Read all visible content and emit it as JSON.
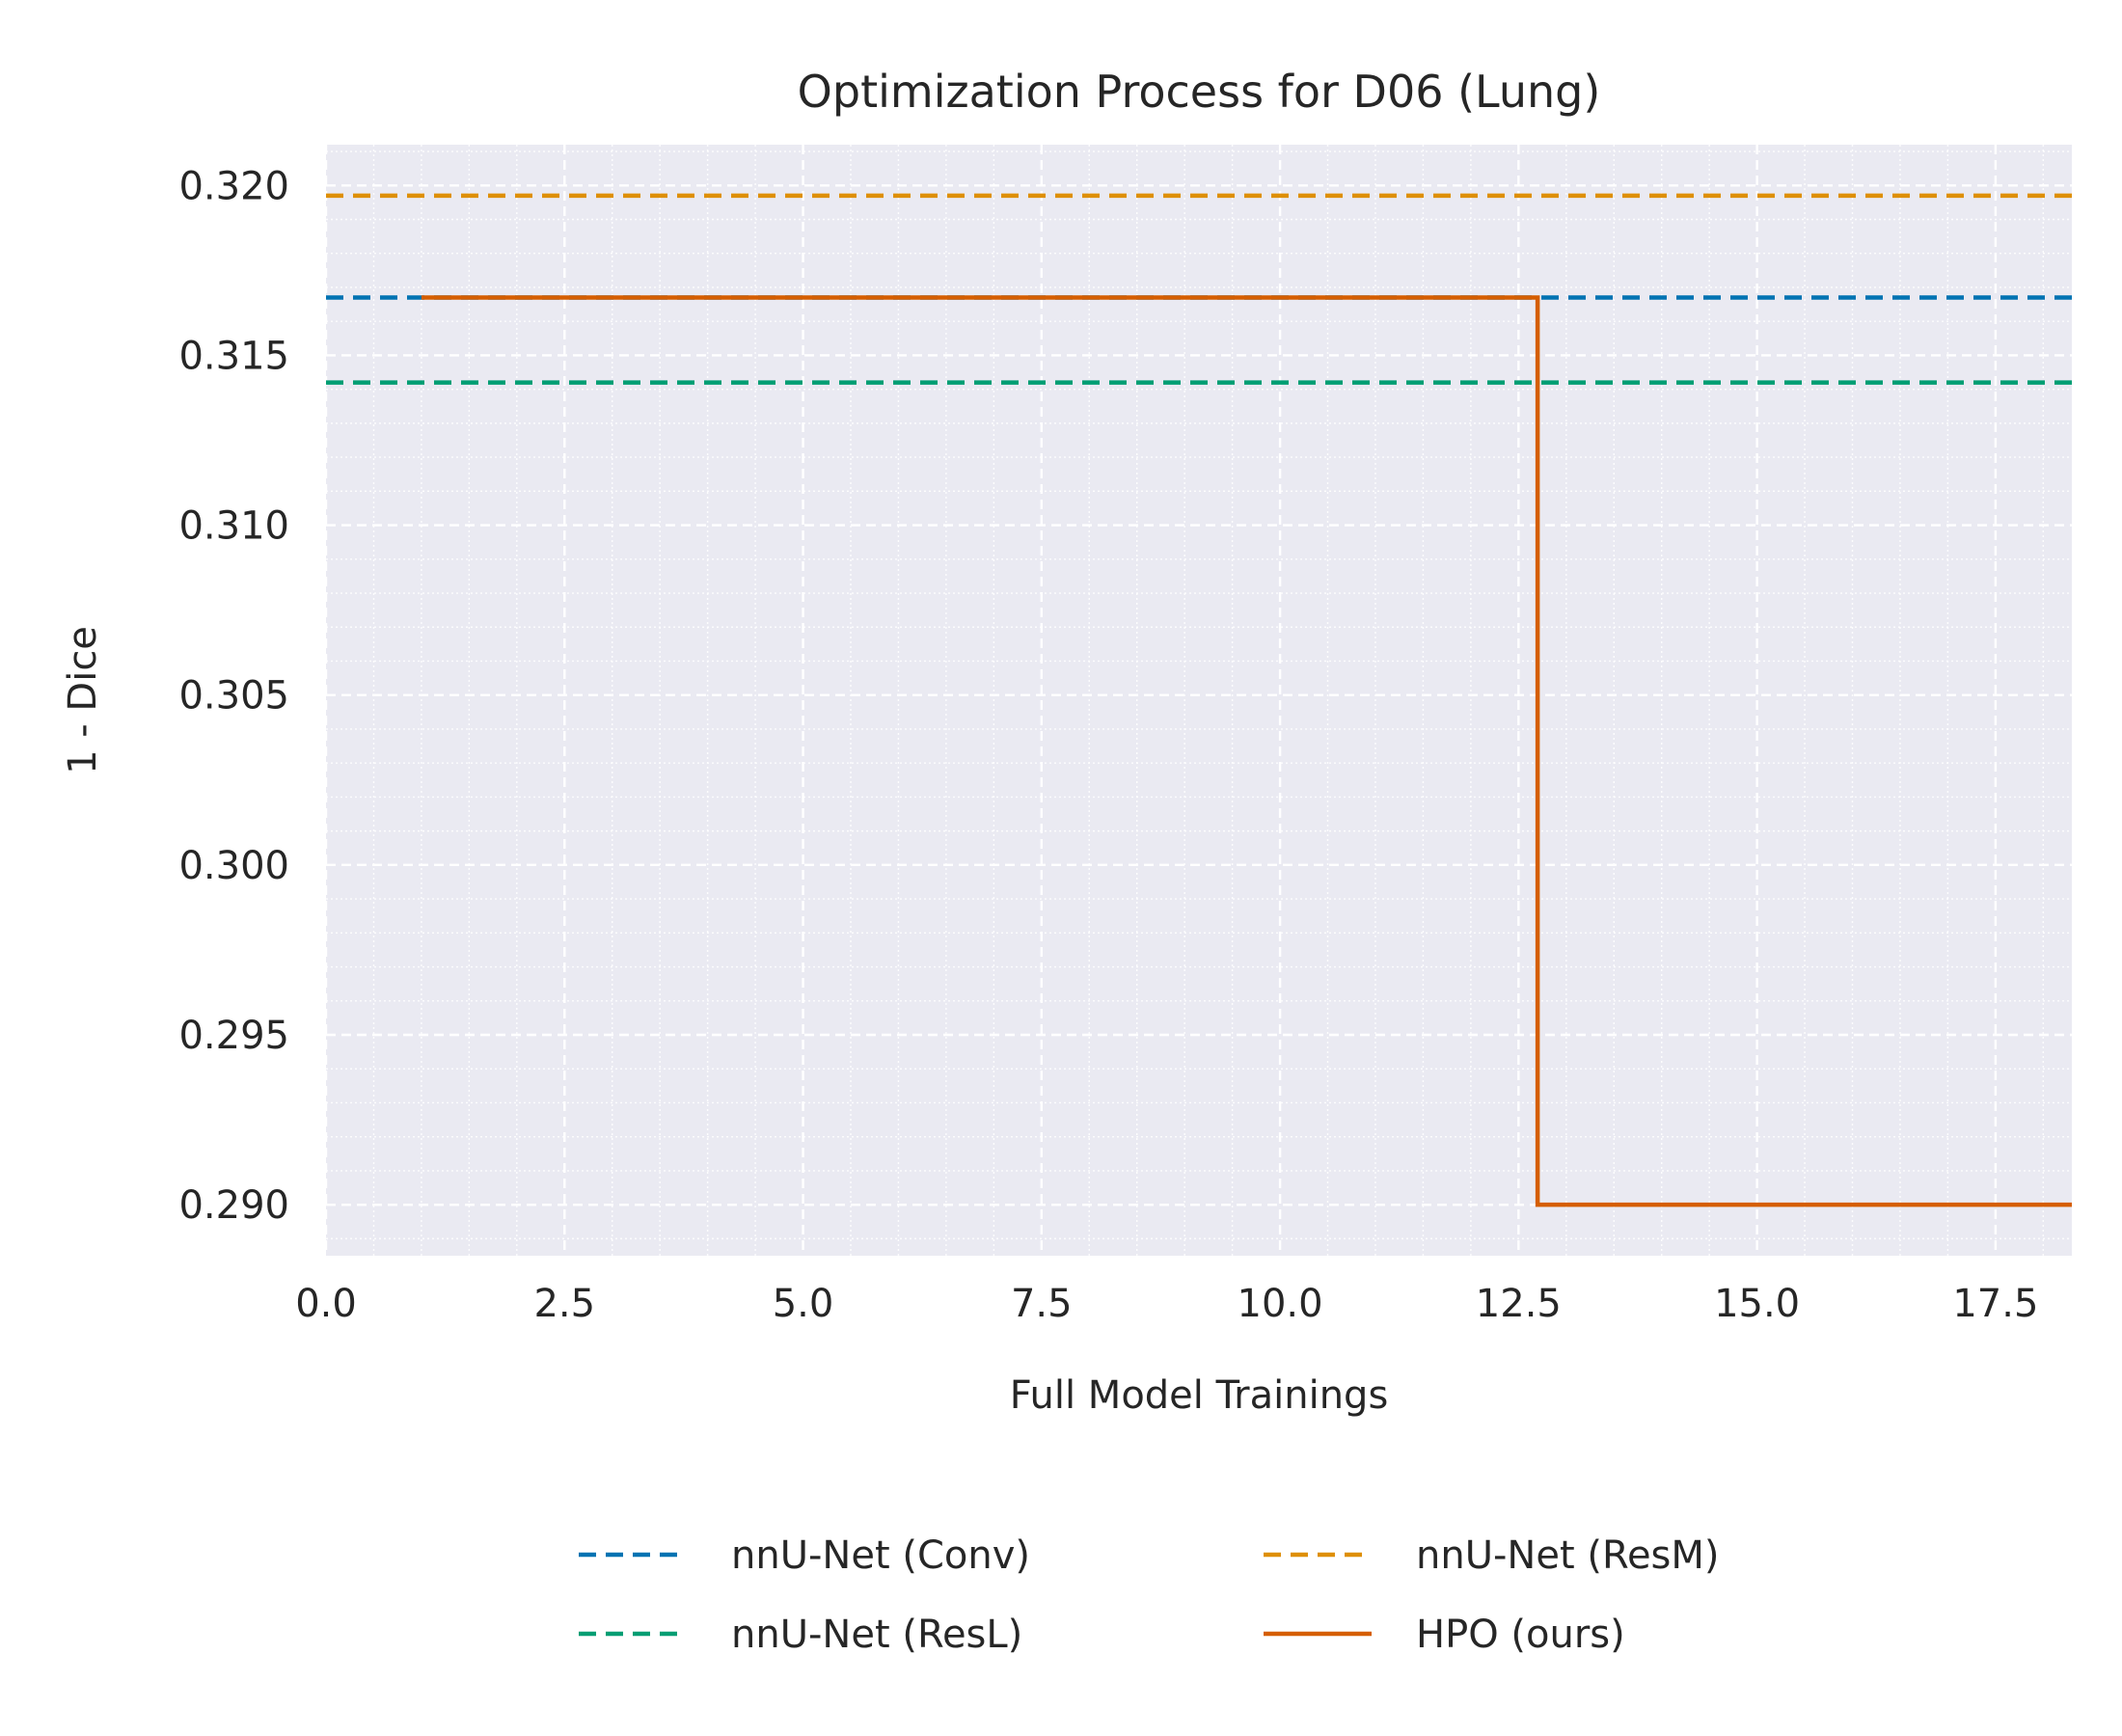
{
  "chart_data": {
    "type": "line",
    "title": "Optimization Process for D06 (Lung)",
    "xlabel": "Full Model Trainings",
    "ylabel": "1 - Dice",
    "xlim": [
      0,
      18.3
    ],
    "ylim": [
      0.2885,
      0.3212
    ],
    "x_ticks": [
      0.0,
      2.5,
      5.0,
      7.5,
      10.0,
      12.5,
      15.0,
      17.5
    ],
    "x_tick_labels": [
      "0.0",
      "2.5",
      "5.0",
      "7.5",
      "10.0",
      "12.5",
      "15.0",
      "17.5"
    ],
    "y_ticks": [
      0.29,
      0.295,
      0.3,
      0.305,
      0.31,
      0.315,
      0.32
    ],
    "y_tick_labels": [
      "0.290",
      "0.295",
      "0.300",
      "0.305",
      "0.310",
      "0.315",
      "0.320"
    ],
    "grid": true,
    "minor_grid": true,
    "legend_position": "below-center",
    "series": [
      {
        "name": "nnU-Net (Conv)",
        "style": "dashed",
        "color": "#0173b2",
        "kind": "hline",
        "y": 0.3167
      },
      {
        "name": "nnU-Net (ResM)",
        "style": "dashed",
        "color": "#de8f05",
        "kind": "hline",
        "y": 0.3197
      },
      {
        "name": "nnU-Net (ResL)",
        "style": "dashed",
        "color": "#029e73",
        "kind": "hline",
        "y": 0.3142
      },
      {
        "name": "HPO (ours)",
        "style": "solid",
        "color": "#d55e00",
        "kind": "step",
        "x": [
          1.0,
          12.7,
          12.7,
          18.3
        ],
        "y": [
          0.3167,
          0.3167,
          0.29,
          0.29
        ]
      }
    ],
    "legend_order": [
      0,
      2,
      1,
      3
    ]
  }
}
